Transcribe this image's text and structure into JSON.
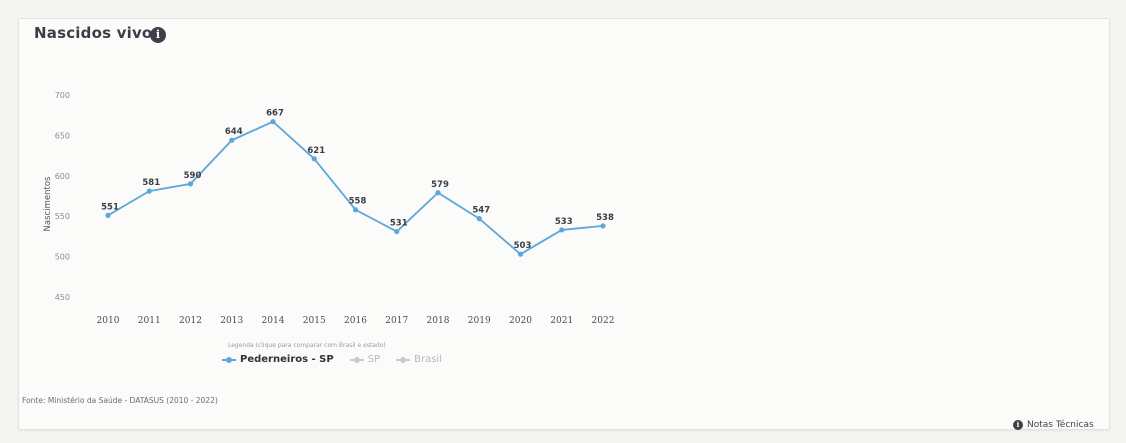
{
  "header": {
    "title": "Nascidos vivos",
    "info_icon": "info-icon"
  },
  "chart_data": {
    "type": "line",
    "ylabel": "Nascimentos",
    "xlabel": "",
    "ylim": [
      450,
      700
    ],
    "yticks": [
      450,
      500,
      550,
      600,
      650,
      700
    ],
    "categories": [
      "2010",
      "2011",
      "2012",
      "2013",
      "2014",
      "2015",
      "2016",
      "2017",
      "2018",
      "2019",
      "2020",
      "2021",
      "2022"
    ],
    "series": [
      {
        "name": "Pederneiros - SP",
        "color": "#5aa7dc",
        "values": [
          551,
          581,
          590,
          644,
          667,
          621,
          558,
          531,
          579,
          547,
          503,
          533,
          538
        ]
      }
    ],
    "grid": false,
    "legend_position": "bottom-left"
  },
  "legend": {
    "hint": "Legenda (clique para comparar com Brasil e estado)",
    "items": [
      {
        "label": "Pederneiros - SP",
        "color": "#5aa7dc",
        "active": true
      },
      {
        "label": "SP",
        "color": "#c8cacd",
        "active": false
      },
      {
        "label": "Brasil",
        "color": "#c8cacd",
        "active": false
      }
    ]
  },
  "footer": {
    "source": "Fonte: Ministério da Saúde - DATASUS (2010 - 2022)",
    "notes_label": "Notas Técnicas",
    "notes_icon": "info-icon"
  }
}
